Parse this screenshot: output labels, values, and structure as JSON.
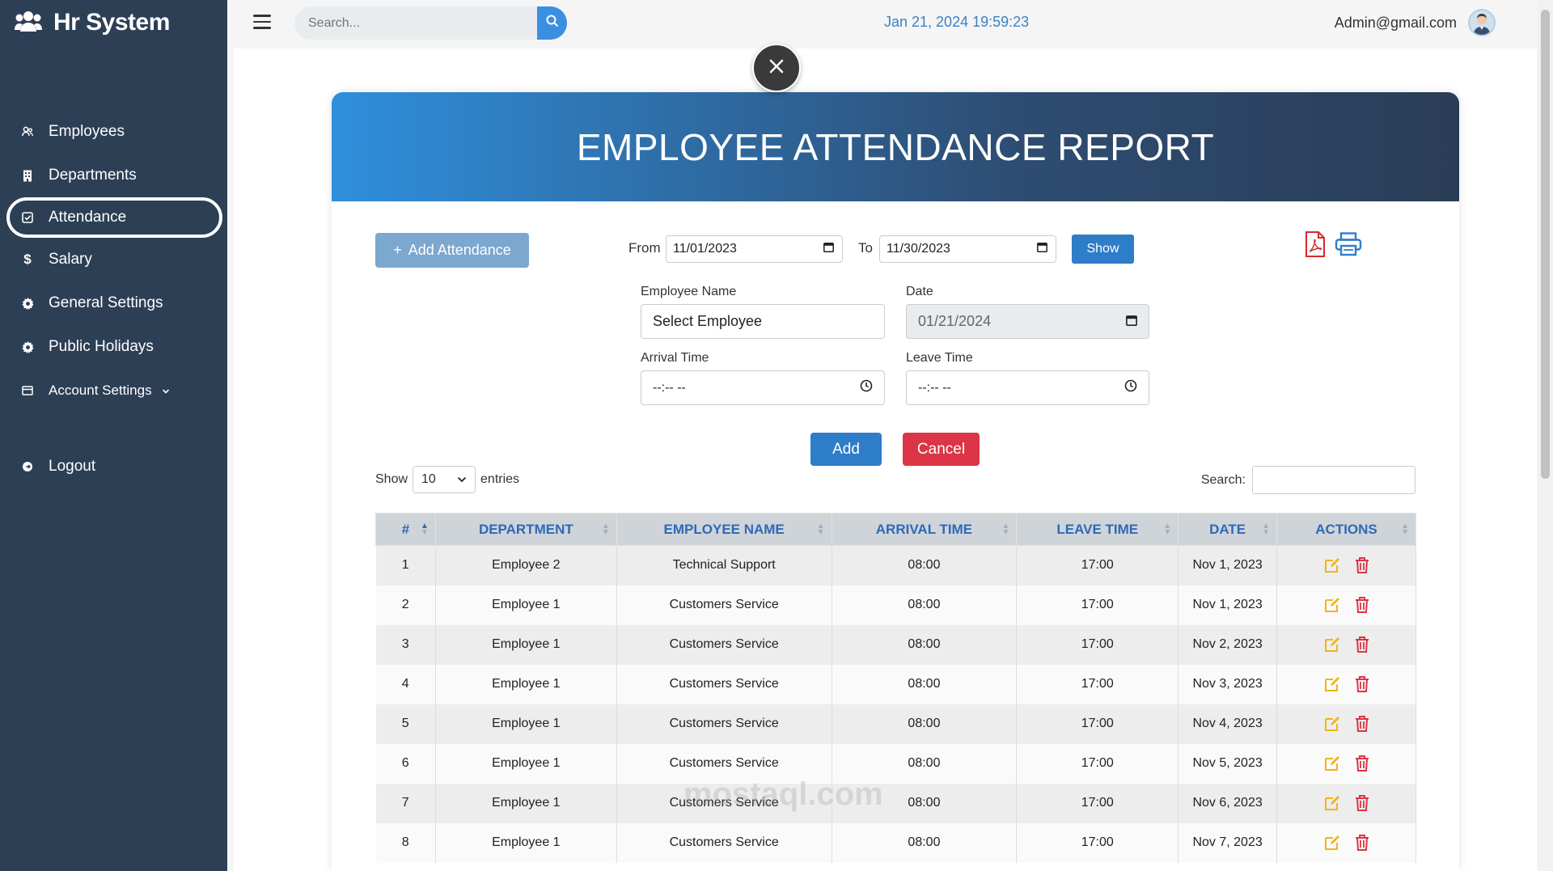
{
  "app": {
    "title": "Hr System"
  },
  "sidebar": {
    "items": [
      {
        "label": "Employees",
        "icon": "users-icon"
      },
      {
        "label": "Departments",
        "icon": "building-icon"
      },
      {
        "label": "Attendance",
        "icon": "check-square-icon",
        "active": true
      },
      {
        "label": "Salary",
        "icon": "dollar-icon"
      },
      {
        "label": "General Settings",
        "icon": "gear-icon"
      },
      {
        "label": "Public Holidays",
        "icon": "gear-icon"
      },
      {
        "label": "Account Settings",
        "icon": "card-icon"
      },
      {
        "label": "Logout",
        "icon": "logout-icon"
      }
    ]
  },
  "topbar": {
    "search_placeholder": "Search...",
    "datetime": "Jan 21, 2024 19:59:23",
    "user_email": "Admin@gmail.com"
  },
  "report": {
    "title": "EMPLOYEE ATTENDANCE REPORT",
    "add_attendance_label": "Add Attendance",
    "from_label": "From",
    "from_value": "11/01/2023",
    "to_label": "To",
    "to_value": "11/30/2023",
    "show_label": "Show"
  },
  "form": {
    "employee_name_label": "Employee Name",
    "employee_name_value": "Select Employee",
    "date_label": "Date",
    "date_value": "01/21/2024",
    "arrival_time_label": "Arrival Time",
    "arrival_time_value": "--:-- --",
    "leave_time_label": "Leave Time",
    "leave_time_value": "--:-- --",
    "add_label": "Add",
    "cancel_label": "Cancel"
  },
  "table_controls": {
    "show_label": "Show",
    "entries_value": "10",
    "entries_label": "entries",
    "search_label": "Search:"
  },
  "table": {
    "headers": [
      "#",
      "DEPARTMENT",
      "EMPLOYEE NAME",
      "ARRIVAL TIME",
      "LEAVE TIME",
      "DATE",
      "ACTIONS"
    ],
    "rows": [
      [
        "1",
        "Employee 2",
        "Technical Support",
        "08:00",
        "17:00",
        "Nov 1, 2023"
      ],
      [
        "2",
        "Employee 1",
        "Customers Service",
        "08:00",
        "17:00",
        "Nov 1, 2023"
      ],
      [
        "3",
        "Employee 1",
        "Customers Service",
        "08:00",
        "17:00",
        "Nov 2, 2023"
      ],
      [
        "4",
        "Employee 1",
        "Customers Service",
        "08:00",
        "17:00",
        "Nov 3, 2023"
      ],
      [
        "5",
        "Employee 1",
        "Customers Service",
        "08:00",
        "17:00",
        "Nov 4, 2023"
      ],
      [
        "6",
        "Employee 1",
        "Customers Service",
        "08:00",
        "17:00",
        "Nov 5, 2023"
      ],
      [
        "7",
        "Employee 1",
        "Customers Service",
        "08:00",
        "17:00",
        "Nov 6, 2023"
      ],
      [
        "8",
        "Employee 1",
        "Customers Service",
        "08:00",
        "17:00",
        "Nov 7, 2023"
      ]
    ]
  },
  "watermark": "mostaql.com",
  "colors": {
    "sidebar_bg": "#2d3f55",
    "primary": "#2e7dc8",
    "danger": "#dc3545",
    "header_blue": "#2d69b7",
    "edit_icon": "#f2b416",
    "delete_icon": "#dc3545"
  }
}
